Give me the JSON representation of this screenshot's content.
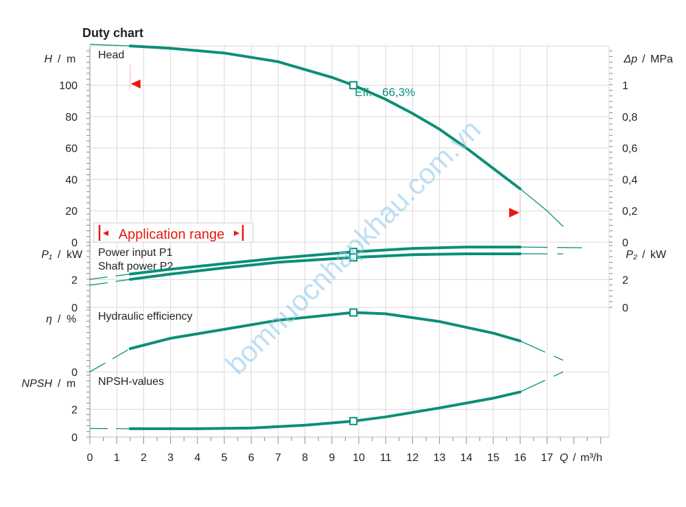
{
  "chart_data": {
    "type": "line",
    "title": "Duty chart",
    "x_axis": {
      "symbol": "Q",
      "unit": "m³/h",
      "range": [
        0,
        19
      ],
      "ticks": [
        0,
        1,
        2,
        3,
        4,
        5,
        6,
        7,
        8,
        9,
        10,
        11,
        12,
        13,
        14,
        15,
        16,
        17
      ],
      "tick_labels": [
        "0",
        "1",
        "2",
        "3",
        "4",
        "5",
        "6",
        "7",
        "8",
        "9",
        "10",
        "11",
        "12",
        "13",
        "14",
        "15",
        "16",
        "17"
      ]
    },
    "operating_point": {
      "q": 9.8,
      "efficiency_label": "Eff.",
      "efficiency_value": "66,3%"
    },
    "application_range": {
      "label": "Application range",
      "q_min": 1.5,
      "q_max": 16
    },
    "panels": [
      {
        "name": "head",
        "legend": "Head",
        "left_axis": {
          "symbol": "H",
          "unit": "m",
          "range": [
            0,
            125
          ],
          "ticks": [
            0,
            20,
            40,
            60,
            80,
            100
          ],
          "tick_labels": [
            "0",
            "20",
            "40",
            "60",
            "80",
            "100"
          ]
        },
        "right_axis": {
          "symbol": "Δp",
          "unit": "MPa",
          "range": [
            0,
            1.25
          ],
          "ticks": [
            0,
            0.2,
            0.4,
            0.6,
            0.8,
            1
          ],
          "tick_labels": [
            "0",
            "0,2",
            "0,4",
            "0,6",
            "0,8",
            "1"
          ]
        },
        "series": [
          {
            "name": "Head",
            "points": [
              [
                0,
                126
              ],
              [
                1.5,
                125
              ],
              [
                3,
                123.5
              ],
              [
                5,
                120.5
              ],
              [
                7,
                115
              ],
              [
                9,
                105
              ],
              [
                9.8,
                100
              ],
              [
                11,
                91
              ],
              [
                12,
                82
              ],
              [
                13,
                72
              ],
              [
                14,
                60
              ],
              [
                15,
                47
              ],
              [
                16,
                34
              ],
              [
                17,
                20
              ],
              [
                17.6,
                10
              ]
            ]
          }
        ]
      },
      {
        "name": "power",
        "legend": "Power input P1",
        "legend2": "Shaft power P2",
        "left_axis": {
          "symbol": "P₁",
          "unit": "kW",
          "range": [
            0,
            4.7
          ],
          "ticks": [
            0,
            2
          ],
          "tick_labels": [
            "0",
            "2"
          ]
        },
        "right_axis": {
          "symbol": "P₂",
          "unit": "kW",
          "range": [
            0,
            4.7
          ],
          "ticks": [
            0,
            2
          ],
          "tick_labels": [
            "0",
            "2"
          ]
        },
        "series": [
          {
            "name": "Power input P1",
            "points": [
              [
                0,
                2.03
              ],
              [
                1.5,
                2.4
              ],
              [
                3,
                2.75
              ],
              [
                5,
                3.15
              ],
              [
                7,
                3.55
              ],
              [
                9.8,
                4
              ],
              [
                12,
                4.25
              ],
              [
                14,
                4.35
              ],
              [
                16,
                4.35
              ],
              [
                18.3,
                4.3
              ]
            ]
          },
          {
            "name": "Shaft power P2",
            "points": [
              [
                0,
                1.6
              ],
              [
                1.5,
                2.02
              ],
              [
                3,
                2.4
              ],
              [
                5,
                2.85
              ],
              [
                7,
                3.25
              ],
              [
                9.8,
                3.6
              ],
              [
                12,
                3.8
              ],
              [
                14,
                3.86
              ],
              [
                16,
                3.86
              ],
              [
                17.6,
                3.86
              ]
            ]
          }
        ]
      },
      {
        "name": "efficiency",
        "legend": "Hydraulic efficiency",
        "left_axis": {
          "symbol": "η",
          "unit": "%",
          "range": [
            0,
            100
          ],
          "ticks": [
            0
          ],
          "tick_labels": [
            "0"
          ]
        },
        "series": [
          {
            "name": "Hydraulic efficiency",
            "points": [
              [
                0,
                0
              ],
              [
                1.5,
                36
              ],
              [
                3,
                52
              ],
              [
                5,
                66
              ],
              [
                7,
                80
              ],
              [
                9.8,
                92
              ],
              [
                11,
                90
              ],
              [
                13,
                78
              ],
              [
                15,
                60
              ],
              [
                16,
                48
              ],
              [
                17.6,
                18
              ]
            ]
          }
        ]
      },
      {
        "name": "npsh",
        "legend": "NPSH-values",
        "left_axis": {
          "symbol": "NPSH",
          "unit": "m",
          "range": [
            0,
            4.7
          ],
          "ticks": [
            0,
            2
          ],
          "tick_labels": [
            "0",
            "2"
          ]
        },
        "series": [
          {
            "name": "NPSH-values",
            "points": [
              [
                0,
                0.62
              ],
              [
                1.5,
                0.6
              ],
              [
                4,
                0.6
              ],
              [
                6,
                0.65
              ],
              [
                8,
                0.85
              ],
              [
                9.8,
                1.15
              ],
              [
                11,
                1.45
              ],
              [
                13,
                2.1
              ],
              [
                15,
                2.8
              ],
              [
                16,
                3.25
              ],
              [
                17.6,
                4.7
              ]
            ]
          }
        ]
      }
    ],
    "watermark": "bomnuocnhapkhau.com.vn",
    "colors": {
      "curve": "#0b8f77",
      "grid": "#d8d8d8",
      "range_marker": "#e8190f",
      "axis": "#888888",
      "text": "#222222"
    }
  }
}
